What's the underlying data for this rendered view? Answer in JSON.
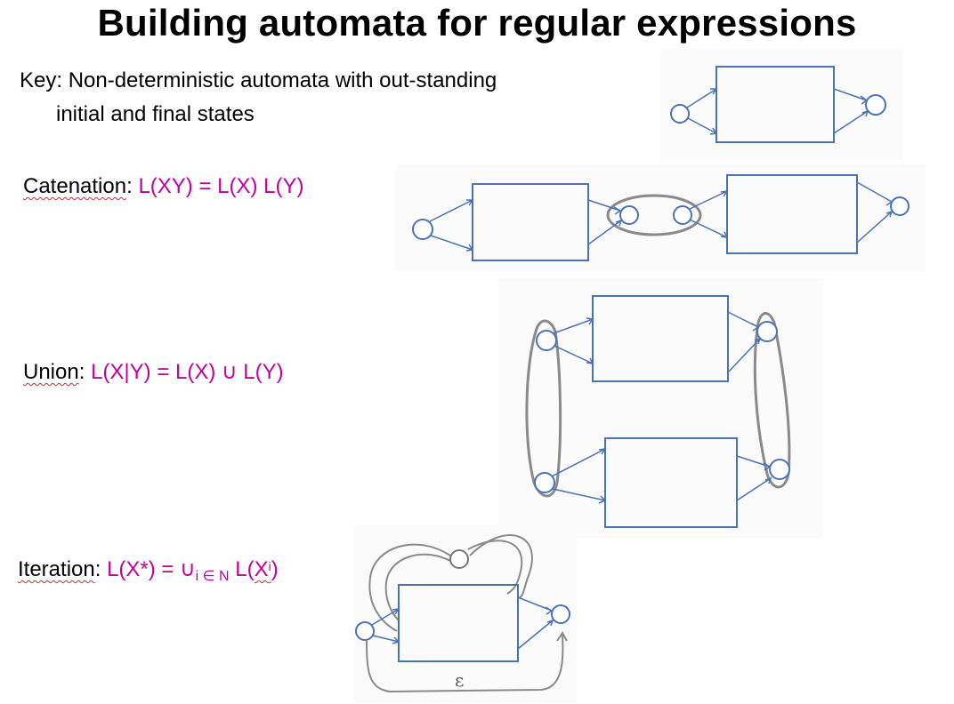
{
  "title": "Building automata for regular expressions",
  "key": {
    "line1": "Key: Non-deterministic automata with out-standing",
    "line2": "initial and final states"
  },
  "catenation": {
    "term": "Catenation",
    "colon": ":",
    "formula": "L(XY) = L(X) L(Y)"
  },
  "union": {
    "term": "Union",
    "colon": ":",
    "formula": "L(X|Y) = L(X) ∪ L(Y)"
  },
  "iteration": {
    "term": "Iteration",
    "colon": ":",
    "formula_start": "L(X*) = ∪",
    "subscript": "i ∈ N",
    "formula_mid": " L(",
    "formula_base": "X",
    "superscript": "i",
    "formula_end": ")"
  },
  "epsilon_label": "ε",
  "colors": {
    "formula": "#c000a0",
    "automaton": "#4a72b8",
    "epsilon_edges": "#8a8a8a"
  }
}
